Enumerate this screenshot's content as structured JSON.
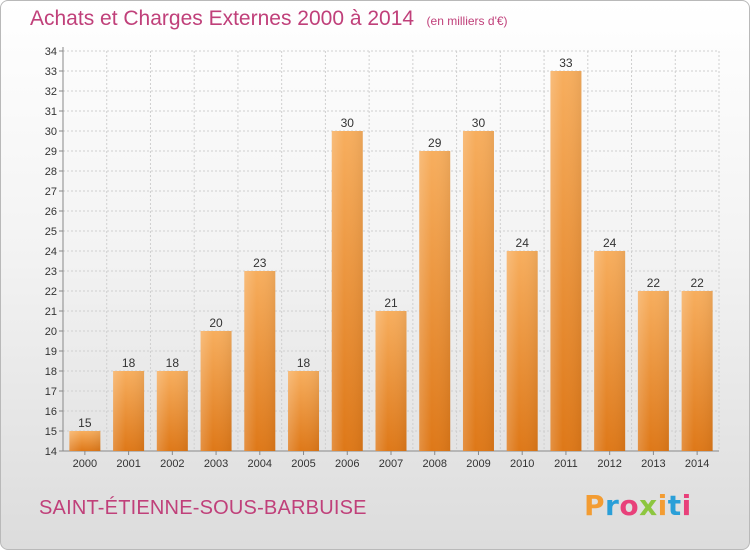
{
  "header": {
    "title": "Achats et Charges Externes 2000 à 2014",
    "subtitle": "(en milliers d'€)"
  },
  "footer": {
    "commune": "SAINT-ÉTIENNE-SOUS-BARBUISE",
    "brand": "Proxiti",
    "brand_colors": [
      "#f39c32",
      "#2a9fd8",
      "#e8407a",
      "#8dc63f",
      "#f39c32",
      "#2a9fd8",
      "#e8407a"
    ]
  },
  "colors": {
    "bar": "#f4a24c",
    "bar_dark": "#e07a18",
    "grid": "#cfcfcf",
    "title": "#c0407a"
  },
  "chart_data": {
    "type": "bar",
    "title": "Achats et Charges Externes 2000 à 2014",
    "subtitle": "(en milliers d'€)",
    "categories": [
      "2000",
      "2001",
      "2002",
      "2003",
      "2004",
      "2005",
      "2006",
      "2007",
      "2008",
      "2009",
      "2010",
      "2011",
      "2012",
      "2013",
      "2014"
    ],
    "values": [
      15,
      18,
      18,
      20,
      23,
      18,
      30,
      21,
      29,
      30,
      24,
      33,
      24,
      22,
      22
    ],
    "xlabel": "",
    "ylabel": "",
    "ylim": [
      14,
      34
    ],
    "yticks": [
      14,
      15,
      16,
      17,
      18,
      19,
      20,
      21,
      22,
      23,
      24,
      25,
      26,
      27,
      28,
      29,
      30,
      31,
      32,
      33,
      34
    ],
    "grid": true,
    "data_labels": true
  }
}
